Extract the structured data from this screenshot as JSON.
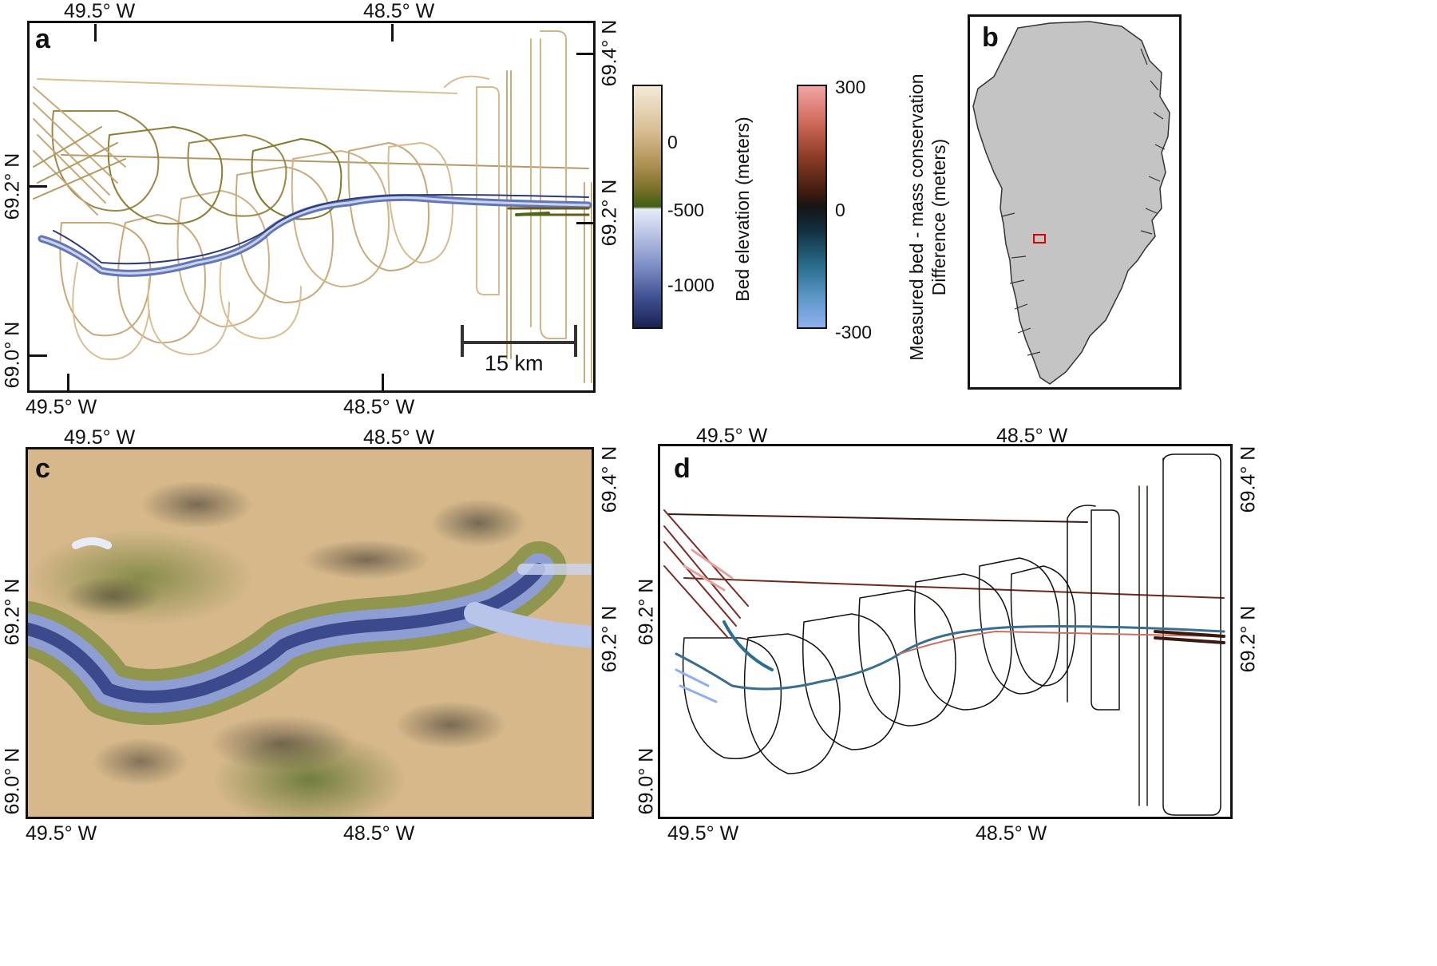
{
  "panels": {
    "a": {
      "label": "a",
      "top_lon_labels": [
        "49.5° W",
        "48.5° W"
      ],
      "bottom_lon_labels": [
        "49.5° W",
        "48.5° W"
      ],
      "left_lat_labels": [
        "69.2° N",
        "69.0° N"
      ],
      "right_lat_labels": [
        "69.4° N",
        "69.2° N"
      ],
      "scale_bar": "15 km"
    },
    "b": {
      "label": "b"
    },
    "c": {
      "label": "c",
      "top_lon_labels": [
        "49.5° W",
        "48.5° W"
      ],
      "bottom_lon_labels": [
        "49.5° W",
        "48.5° W"
      ],
      "left_lat_labels": [
        "69.2° N",
        "69.0° N"
      ],
      "right_lat_labels": [
        "69.4° N",
        "69.2° N"
      ]
    },
    "d": {
      "label": "d",
      "top_lon_labels": [
        "49.5° W",
        "48.5° W"
      ],
      "bottom_lon_labels": [
        "49.5° W",
        "48.5° W"
      ],
      "left_lat_labels": [
        "69.2° N",
        "69.0° N"
      ],
      "right_lat_labels": [
        "69.4° N",
        "69.2° N"
      ]
    }
  },
  "colorbars": {
    "bed": {
      "title": "Bed elevation (meters)",
      "ticks": [
        "0",
        "-500",
        "-1000"
      ],
      "colors": {
        "top": "#f3ead8",
        "mid_high": "#c8a774",
        "mid": "#8e7c33",
        "green": "#3f5f12",
        "pale": "#e6ecf8",
        "low": "#5a6da8",
        "bottom": "#1a2350"
      }
    },
    "diff": {
      "title_line1": "Measured bed - mass conservation",
      "title_line2": "Difference (meters)",
      "ticks": [
        "300",
        "0",
        "-300"
      ],
      "colors": {
        "top": "#f2a5a5",
        "upper": "#8a3a24",
        "zero": "#151515",
        "lower": "#2a6f8f",
        "bottom": "#8fb0ef"
      }
    }
  },
  "locator": {
    "land_color": "#c4c4c4",
    "box_color": "#e00000"
  }
}
